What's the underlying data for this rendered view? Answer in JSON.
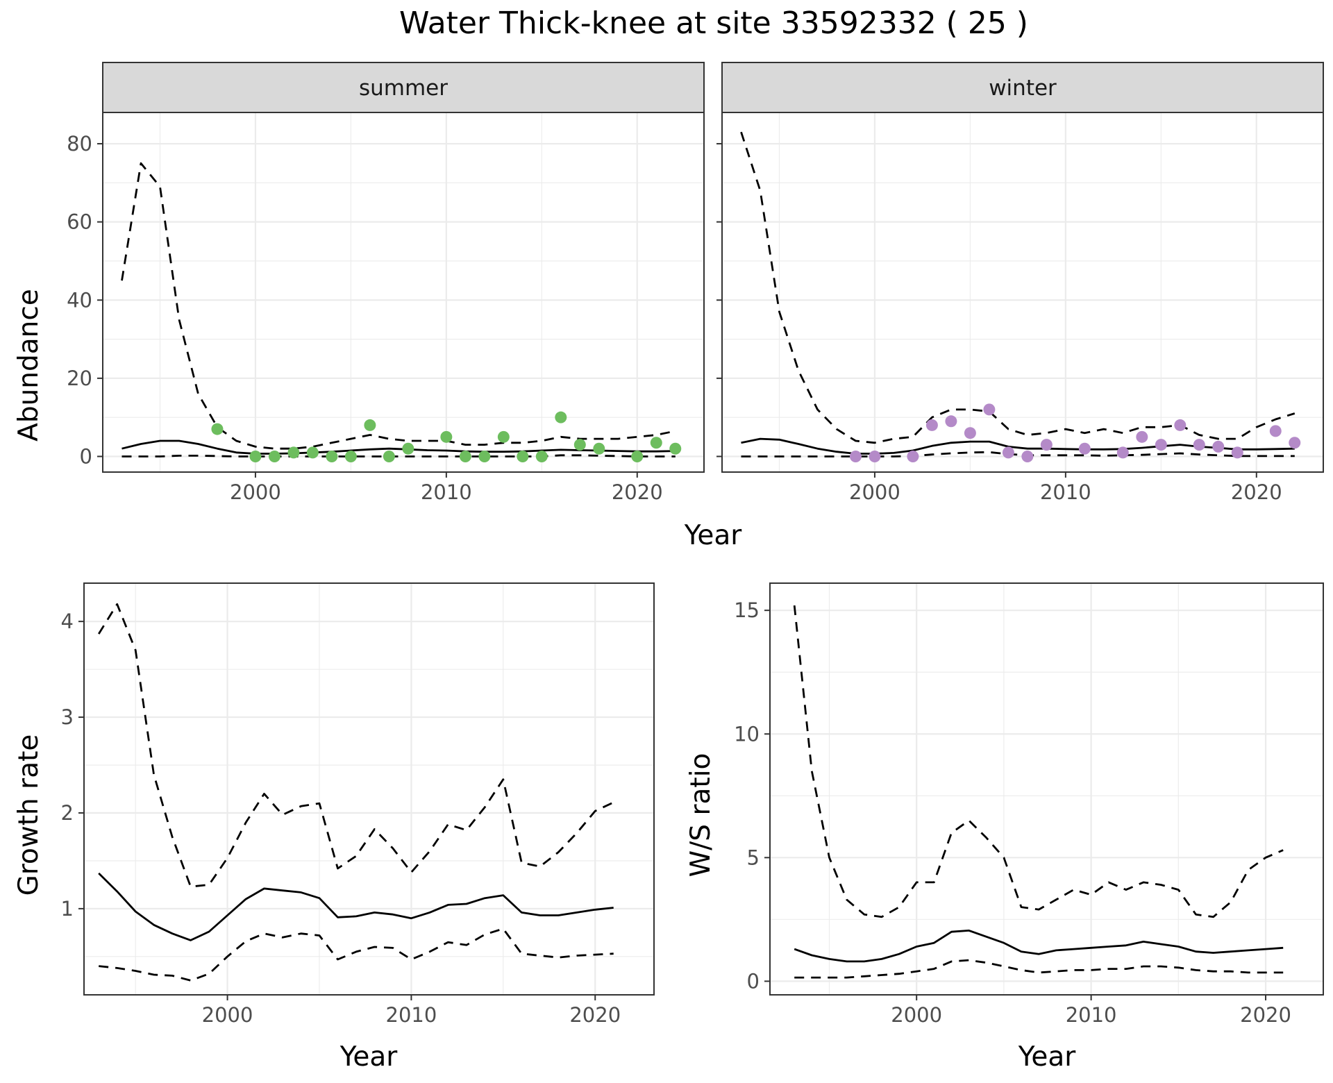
{
  "chart_data": {
    "title": "Water Thick-knee at site 33592332 ( 25 )",
    "panels": [
      {
        "id": "summer",
        "type": "line+scatter",
        "strip": "summer",
        "xlabel": "",
        "ylabel": "Abundance",
        "xlim": [
          1992,
          2023.5
        ],
        "ylim": [
          -4,
          88
        ],
        "xticks": [
          2000,
          2010,
          2020
        ],
        "yticks": [
          0,
          20,
          40,
          60,
          80
        ],
        "point_color": "#6dbd5e",
        "years": [
          1993,
          1994,
          1995,
          1996,
          1997,
          1998,
          1999,
          2000,
          2001,
          2002,
          2003,
          2004,
          2005,
          2006,
          2007,
          2008,
          2009,
          2010,
          2011,
          2012,
          2013,
          2014,
          2015,
          2016,
          2017,
          2018,
          2019,
          2020,
          2021,
          2022
        ],
        "estimate": [
          2,
          3.2,
          4,
          4,
          3.2,
          2,
          1,
          0.7,
          0.7,
          0.8,
          1,
          1.2,
          1.5,
          1.8,
          2,
          1.8,
          1.6,
          1.5,
          1.3,
          1.2,
          1.2,
          1.3,
          1.5,
          1.7,
          1.6,
          1.5,
          1.4,
          1.3,
          1.3,
          1.4
        ],
        "upper": [
          45,
          75,
          69,
          35,
          16,
          7.5,
          4,
          2.5,
          2,
          2,
          2.5,
          3.5,
          4.5,
          5.5,
          4.5,
          4,
          4,
          4,
          3,
          3,
          3.5,
          3.5,
          4,
          5,
          4.5,
          4.5,
          4.5,
          5,
          5.5,
          6.5
        ],
        "lower": [
          0,
          0,
          0,
          0.2,
          0.2,
          0.1,
          0,
          0,
          0,
          0,
          0,
          0,
          0,
          0,
          0,
          0,
          0,
          0,
          0,
          0,
          0,
          0,
          0,
          0.3,
          0.3,
          0.2,
          0.1,
          0,
          0,
          0
        ],
        "points": [
          [
            1998,
            7
          ],
          [
            2000,
            0
          ],
          [
            2001,
            0
          ],
          [
            2002,
            1
          ],
          [
            2003,
            1
          ],
          [
            2004,
            0
          ],
          [
            2005,
            0
          ],
          [
            2006,
            8
          ],
          [
            2007,
            0
          ],
          [
            2008,
            2
          ],
          [
            2010,
            5
          ],
          [
            2011,
            0
          ],
          [
            2012,
            0
          ],
          [
            2013,
            5
          ],
          [
            2014,
            0
          ],
          [
            2015,
            0
          ],
          [
            2016,
            10
          ],
          [
            2017,
            3
          ],
          [
            2018,
            2
          ],
          [
            2020,
            0
          ],
          [
            2021,
            3.5
          ],
          [
            2022,
            2
          ]
        ]
      },
      {
        "id": "winter",
        "type": "line+scatter",
        "strip": "winter",
        "xlabel": "",
        "ylabel": "",
        "xlim": [
          1992,
          2023.5
        ],
        "ylim": [
          -4,
          88
        ],
        "xticks": [
          2000,
          2010,
          2020
        ],
        "yticks": [
          0,
          20,
          40,
          60,
          80
        ],
        "point_color": "#b48ac8",
        "years": [
          1993,
          1994,
          1995,
          1996,
          1997,
          1998,
          1999,
          2000,
          2001,
          2002,
          2003,
          2004,
          2005,
          2006,
          2007,
          2008,
          2009,
          2010,
          2011,
          2012,
          2013,
          2014,
          2015,
          2016,
          2017,
          2018,
          2019,
          2020,
          2021,
          2022
        ],
        "estimate": [
          3.5,
          4.5,
          4.3,
          3.2,
          2,
          1.2,
          0.7,
          0.7,
          0.9,
          1.5,
          2.7,
          3.5,
          3.8,
          3.8,
          2.5,
          2,
          2,
          1.9,
          1.8,
          1.8,
          1.9,
          2.2,
          2.6,
          3,
          2.5,
          2.2,
          1.8,
          1.8,
          1.9,
          2
        ],
        "upper": [
          83,
          68,
          37,
          22,
          12,
          7,
          4,
          3.5,
          4.5,
          5,
          10,
          12,
          12,
          11.5,
          7,
          5.5,
          6,
          7,
          6,
          7,
          6,
          7.5,
          7.5,
          8,
          5.5,
          4.5,
          4.5,
          7.5,
          9.5,
          11
        ],
        "lower": [
          0,
          0,
          0,
          0,
          0,
          0,
          0,
          0,
          0,
          0.1,
          0.5,
          0.8,
          1,
          1.1,
          0.6,
          0.3,
          0.3,
          0.3,
          0.3,
          0.2,
          0.3,
          0.4,
          0.6,
          0.8,
          0.5,
          0.3,
          0.1,
          0.1,
          0.1,
          0.1
        ],
        "points": [
          [
            1999,
            0
          ],
          [
            2000,
            0
          ],
          [
            2002,
            0
          ],
          [
            2003,
            8
          ],
          [
            2004,
            9
          ],
          [
            2005,
            6
          ],
          [
            2006,
            12
          ],
          [
            2007,
            1
          ],
          [
            2008,
            0
          ],
          [
            2009,
            3
          ],
          [
            2011,
            2
          ],
          [
            2013,
            1
          ],
          [
            2014,
            5
          ],
          [
            2015,
            3
          ],
          [
            2016,
            8
          ],
          [
            2017,
            3
          ],
          [
            2018,
            2.5
          ],
          [
            2019,
            1
          ],
          [
            2021,
            6.5
          ],
          [
            2022,
            3.5
          ]
        ]
      },
      {
        "id": "growth",
        "type": "line",
        "xlabel": "Year",
        "ylabel": "Growth rate",
        "xlim": [
          1992.2,
          2023.2
        ],
        "ylim": [
          0.1,
          4.4
        ],
        "xticks": [
          2000,
          2010,
          2020
        ],
        "yticks": [
          1,
          2,
          3,
          4
        ],
        "years": [
          1993,
          1994,
          1995,
          1996,
          1997,
          1998,
          1999,
          2000,
          2001,
          2002,
          2003,
          2004,
          2005,
          2006,
          2007,
          2008,
          2009,
          2010,
          2011,
          2012,
          2013,
          2014,
          2015,
          2016,
          2017,
          2018,
          2019,
          2020,
          2021
        ],
        "estimate": [
          1.37,
          1.18,
          0.97,
          0.83,
          0.74,
          0.67,
          0.76,
          0.93,
          1.1,
          1.21,
          1.19,
          1.17,
          1.11,
          0.91,
          0.92,
          0.96,
          0.94,
          0.9,
          0.96,
          1.04,
          1.05,
          1.11,
          1.14,
          0.96,
          0.93,
          0.93,
          0.96,
          0.99,
          1.01
        ],
        "upper": [
          3.87,
          4.18,
          3.7,
          2.4,
          1.75,
          1.23,
          1.25,
          1.53,
          1.9,
          2.2,
          1.98,
          2.07,
          2.1,
          1.42,
          1.55,
          1.83,
          1.63,
          1.38,
          1.6,
          1.88,
          1.82,
          2.06,
          2.35,
          1.48,
          1.44,
          1.59,
          1.79,
          2.02,
          2.11
        ],
        "lower": [
          0.4,
          0.38,
          0.35,
          0.31,
          0.3,
          0.25,
          0.32,
          0.5,
          0.66,
          0.74,
          0.7,
          0.74,
          0.72,
          0.47,
          0.55,
          0.6,
          0.59,
          0.47,
          0.55,
          0.65,
          0.62,
          0.73,
          0.79,
          0.53,
          0.51,
          0.49,
          0.51,
          0.52,
          0.53
        ]
      },
      {
        "id": "ws_ratio",
        "type": "line",
        "xlabel": "Year",
        "ylabel": "W/S ratio",
        "xlim": [
          1991.6,
          2023.3
        ],
        "ylim": [
          -0.55,
          16.1
        ],
        "xticks": [
          2000,
          2010,
          2020
        ],
        "yticks": [
          0,
          5,
          10,
          15
        ],
        "years": [
          1993,
          1994,
          1995,
          1996,
          1997,
          1998,
          1999,
          2000,
          2001,
          2002,
          2003,
          2004,
          2005,
          2006,
          2007,
          2008,
          2009,
          2010,
          2011,
          2012,
          2013,
          2014,
          2015,
          2016,
          2017,
          2018,
          2019,
          2020,
          2021
        ],
        "estimate": [
          1.3,
          1.05,
          0.9,
          0.8,
          0.8,
          0.9,
          1.1,
          1.4,
          1.55,
          2,
          2.05,
          1.8,
          1.55,
          1.2,
          1.1,
          1.25,
          1.3,
          1.35,
          1.4,
          1.45,
          1.6,
          1.5,
          1.4,
          1.2,
          1.15,
          1.2,
          1.25,
          1.3,
          1.35
        ],
        "upper": [
          15.2,
          8.5,
          5,
          3.3,
          2.7,
          2.6,
          3,
          4,
          4,
          6,
          6.5,
          5.8,
          5,
          3,
          2.9,
          3.3,
          3.7,
          3.5,
          4,
          3.7,
          4,
          3.9,
          3.7,
          2.7,
          2.6,
          3.2,
          4.5,
          5,
          5.3
        ],
        "lower": [
          0.15,
          0.15,
          0.15,
          0.15,
          0.2,
          0.25,
          0.3,
          0.4,
          0.5,
          0.8,
          0.85,
          0.75,
          0.6,
          0.45,
          0.35,
          0.4,
          0.45,
          0.45,
          0.5,
          0.5,
          0.6,
          0.6,
          0.55,
          0.45,
          0.4,
          0.4,
          0.35,
          0.35,
          0.35
        ]
      }
    ]
  }
}
